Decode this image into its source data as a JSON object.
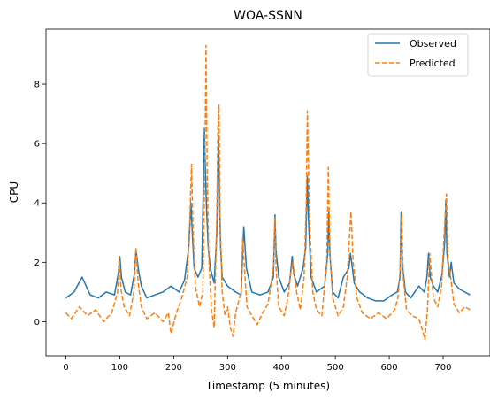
{
  "chart_data": {
    "type": "line",
    "title": "WOA-SSNN",
    "xlabel": "Timestamp (5 minutes)",
    "ylabel": "CPU",
    "xlim": [
      -37,
      787
    ],
    "ylim": [
      -1.15,
      9.85
    ],
    "xticks": [
      0,
      100,
      200,
      300,
      400,
      500,
      600,
      700
    ],
    "yticks": [
      0,
      2,
      4,
      6,
      8
    ],
    "grid": false,
    "legend": "top-right",
    "series": [
      {
        "name": "Observed",
        "color": "#1f77b4",
        "dash": "solid",
        "x": [
          0,
          15,
          30,
          45,
          60,
          75,
          90,
          97,
          100,
          103,
          110,
          120,
          127,
          130,
          135,
          140,
          150,
          165,
          180,
          195,
          210,
          220,
          228,
          232,
          235,
          238,
          245,
          252,
          257,
          259,
          261,
          264,
          268,
          275,
          280,
          283,
          285,
          287,
          290,
          300,
          315,
          325,
          330,
          335,
          345,
          360,
          375,
          385,
          388,
          390,
          395,
          405,
          415,
          420,
          423,
          430,
          440,
          445,
          448,
          450,
          455,
          465,
          480,
          486,
          488,
          490,
          495,
          505,
          515,
          525,
          528,
          531,
          535,
          545,
          560,
          575,
          590,
          605,
          615,
          620,
          622,
          624,
          630,
          640,
          655,
          665,
          670,
          673,
          676,
          682,
          690,
          698,
          703,
          705,
          707,
          712,
          715,
          720,
          730,
          740,
          750
        ],
        "y": [
          0.8,
          1.0,
          1.5,
          0.9,
          0.8,
          1.0,
          0.9,
          1.6,
          2.2,
          1.5,
          1.0,
          0.9,
          1.6,
          2.4,
          1.7,
          1.2,
          0.8,
          0.9,
          1.0,
          1.2,
          1.0,
          1.4,
          2.5,
          4.0,
          2.8,
          1.8,
          1.5,
          1.8,
          6.5,
          5.0,
          3.8,
          2.5,
          1.8,
          1.3,
          3.0,
          6.3,
          4.2,
          2.5,
          1.5,
          1.2,
          1.0,
          0.9,
          3.2,
          1.8,
          1.0,
          0.9,
          1.0,
          1.5,
          3.6,
          2.4,
          1.5,
          1.0,
          1.3,
          2.2,
          1.6,
          1.2,
          1.8,
          2.5,
          4.9,
          3.5,
          1.5,
          1.0,
          1.2,
          2.3,
          3.7,
          2.2,
          1.0,
          0.8,
          1.5,
          1.8,
          2.3,
          1.9,
          1.3,
          1.0,
          0.8,
          0.7,
          0.7,
          0.9,
          1.0,
          1.5,
          3.7,
          2.0,
          1.0,
          0.8,
          1.2,
          1.0,
          1.5,
          2.3,
          1.5,
          1.2,
          1.0,
          1.6,
          2.7,
          4.1,
          2.3,
          1.5,
          2.0,
          1.3,
          1.1,
          1.0,
          0.9
        ]
      },
      {
        "name": "Predicted",
        "color": "#ff7f0e",
        "dash": "dashed",
        "x": [
          0,
          10,
          25,
          40,
          55,
          70,
          85,
          96,
          99,
          102,
          108,
          118,
          126,
          130,
          134,
          140,
          150,
          165,
          180,
          190,
          195,
          205,
          215,
          225,
          230,
          233,
          236,
          240,
          248,
          254,
          258,
          260,
          262,
          265,
          270,
          275,
          280,
          282,
          284,
          286,
          290,
          295,
          300,
          305,
          310,
          315,
          325,
          328,
          332,
          336,
          345,
          355,
          365,
          375,
          385,
          388,
          390,
          395,
          405,
          412,
          417,
          421,
          428,
          435,
          442,
          446,
          448,
          452,
          458,
          465,
          475,
          484,
          487,
          490,
          495,
          505,
          515,
          522,
          526,
          529,
          533,
          540,
          550,
          565,
          580,
          595,
          610,
          616,
          620,
          623,
          626,
          632,
          642,
          655,
          662,
          666,
          671,
          675,
          682,
          690,
          697,
          702,
          706,
          709,
          714,
          720,
          730,
          740,
          750
        ],
        "y": [
          0.3,
          0.1,
          0.5,
          0.2,
          0.4,
          0.0,
          0.3,
          1.0,
          2.2,
          1.1,
          0.5,
          0.2,
          1.0,
          2.5,
          1.3,
          0.5,
          0.1,
          0.3,
          0.0,
          0.3,
          -0.4,
          0.3,
          0.8,
          1.5,
          3.5,
          5.3,
          3.0,
          1.2,
          0.5,
          1.0,
          5.5,
          9.3,
          5.0,
          2.2,
          0.4,
          -0.2,
          3.5,
          6.5,
          7.3,
          3.5,
          1.0,
          0.2,
          0.5,
          -0.2,
          -0.5,
          0.3,
          1.0,
          2.8,
          1.6,
          0.5,
          0.2,
          -0.1,
          0.3,
          0.6,
          1.8,
          3.5,
          1.8,
          0.5,
          0.2,
          0.8,
          1.6,
          2.0,
          1.0,
          0.4,
          1.5,
          4.0,
          7.1,
          3.5,
          1.0,
          0.4,
          0.2,
          2.0,
          5.2,
          2.3,
          0.8,
          0.2,
          0.5,
          1.5,
          2.8,
          3.7,
          2.0,
          0.8,
          0.3,
          0.1,
          0.3,
          0.1,
          0.4,
          0.8,
          1.7,
          3.6,
          1.5,
          0.4,
          0.2,
          0.1,
          -0.3,
          -0.6,
          0.4,
          2.3,
          0.8,
          0.5,
          1.2,
          3.0,
          4.3,
          2.1,
          1.5,
          0.6,
          0.3,
          0.5,
          0.4
        ]
      }
    ]
  }
}
